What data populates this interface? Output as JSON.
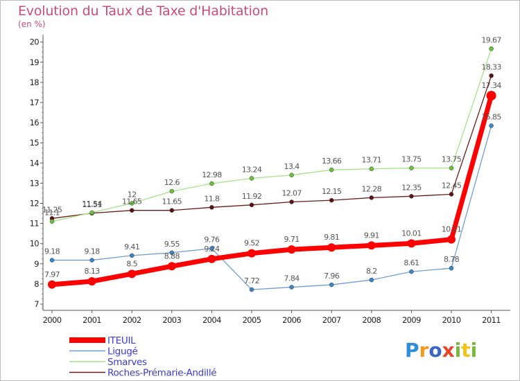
{
  "title": "Evolution du Taux de Taxe d'Habitation",
  "unit_label": "(en %)",
  "logo_text": "Proxiti",
  "chart_data": {
    "type": "line",
    "title": "Evolution du Taux de Taxe d'Habitation",
    "ylabel": "(en %)",
    "x": [
      "2000",
      "2001",
      "2002",
      "2003",
      "2004",
      "2005",
      "2006",
      "2007",
      "2008",
      "2009",
      "2010",
      "2011"
    ],
    "ylim": [
      7,
      20
    ],
    "yticks": [
      7,
      8,
      9,
      10,
      11,
      12,
      13,
      14,
      15,
      16,
      17,
      18,
      19,
      20
    ],
    "grid": false,
    "legend_position": "bottom-left",
    "series": [
      {
        "name": "Roches-Prémarie-Andillé",
        "color": "#6b1a1a",
        "marker_color": "#5a1212",
        "width": 1.3,
        "values": [
          11.25,
          11.51,
          11.65,
          11.65,
          11.8,
          11.92,
          12.07,
          12.15,
          12.28,
          12.35,
          12.45,
          18.33
        ],
        "labels": [
          "11.25",
          "11.51",
          "11.65",
          "11.65",
          "11.8",
          "11.92",
          "12.07",
          "12.15",
          "12.28",
          "12.35",
          "12.45",
          "18.33"
        ]
      },
      {
        "name": "Smarves",
        "color": "#a6e28a",
        "marker_color": "#6cc23a",
        "width": 1.3,
        "values": [
          11.1,
          11.54,
          12,
          12.6,
          12.98,
          13.24,
          13.4,
          13.66,
          13.71,
          13.75,
          13.75,
          19.67
        ],
        "labels": [
          "11.1",
          "11.54",
          "12",
          "12.6",
          "12.98",
          "13.24",
          "13.4",
          "13.66",
          "13.71",
          "13.75",
          "13.75",
          "19.67"
        ]
      },
      {
        "name": "Ligugé",
        "color": "#6e9ed0",
        "marker_color": "#3b86c6",
        "width": 1.3,
        "values": [
          9.18,
          9.18,
          9.41,
          9.55,
          9.76,
          7.72,
          7.84,
          7.96,
          8.2,
          8.61,
          8.78,
          15.85
        ],
        "labels": [
          "9.18",
          "9.18",
          "9.41",
          "9.55",
          "9.76",
          "7.72",
          "7.84",
          "7.96",
          "8.2",
          "8.61",
          "8.78",
          "15.85"
        ]
      },
      {
        "name": "ITEUIL",
        "color": "#ff0000",
        "marker_color": "#ff0000",
        "width": 7,
        "values": [
          7.97,
          8.13,
          8.5,
          8.88,
          9.24,
          9.52,
          9.71,
          9.81,
          9.91,
          10.01,
          10.21,
          17.34
        ],
        "labels": [
          "7.97",
          "8.13",
          "8.5",
          "8.88",
          "9.24",
          "9.52",
          "9.71",
          "9.81",
          "9.91",
          "10.01",
          "10.21",
          "17.34"
        ]
      }
    ],
    "legend": [
      {
        "name": "ITEUIL",
        "color": "#ff0000",
        "text_color": "#3a3ad6",
        "thick": true
      },
      {
        "name": "Ligugé",
        "color": "#6e9ed0",
        "text_color": "#3a3ad6",
        "thick": false
      },
      {
        "name": "Smarves",
        "color": "#a6e28a",
        "text_color": "#3a3ad6",
        "thick": false
      },
      {
        "name": "Roches-Prémarie-Andillé",
        "color": "#6b1a1a",
        "text_color": "#3a3ad6",
        "thick": false
      }
    ]
  }
}
